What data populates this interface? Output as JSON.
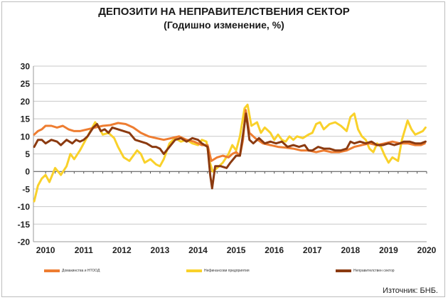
{
  "chart_data": {
    "type": "line",
    "title": "ДЕПОЗИТИ НА НЕПРАВИТЕЛСТВЕНИЯ СЕКТОР",
    "subtitle": "(Годишно изменение, %)",
    "xlabel": "",
    "ylabel": "",
    "ylim": [
      -20,
      30
    ],
    "yticks": [
      30,
      25,
      20,
      15,
      10,
      5,
      0,
      -5,
      -10,
      -15,
      -20
    ],
    "xlim": [
      2009.88,
      2020.2
    ],
    "xticks": [
      {
        "x": 2010.2,
        "label": "2010"
      },
      {
        "x": 2011.2,
        "label": "2011"
      },
      {
        "x": 2012.2,
        "label": "2012"
      },
      {
        "x": 2013.2,
        "label": "2013"
      },
      {
        "x": 2014.2,
        "label": "2014"
      },
      {
        "x": 2015.2,
        "label": "2015"
      },
      {
        "x": 2016.2,
        "label": "2016"
      },
      {
        "x": 2017.2,
        "label": "2017"
      },
      {
        "x": 2018.2,
        "label": "2018"
      },
      {
        "x": 2019.2,
        "label": "2019"
      },
      {
        "x": 2020.2,
        "label": "2020"
      }
    ],
    "grid": "horizontal",
    "legend": "bottom",
    "source": "Източник: БНБ.",
    "series": [
      {
        "name": "Домакинства и НТООД",
        "color": "#ee7d31",
        "width": 3,
        "points": [
          [
            2009.9,
            10.5
          ],
          [
            2010.0,
            11.5
          ],
          [
            2010.1,
            12.0
          ],
          [
            2010.2,
            13.0
          ],
          [
            2010.35,
            13.0
          ],
          [
            2010.5,
            12.5
          ],
          [
            2010.65,
            13.0
          ],
          [
            2010.8,
            12.0
          ],
          [
            2010.95,
            11.5
          ],
          [
            2011.1,
            11.5
          ],
          [
            2011.3,
            12.0
          ],
          [
            2011.5,
            12.5
          ],
          [
            2011.7,
            13.0
          ],
          [
            2011.9,
            13.2
          ],
          [
            2012.1,
            13.8
          ],
          [
            2012.3,
            13.5
          ],
          [
            2012.5,
            12.5
          ],
          [
            2012.7,
            11.0
          ],
          [
            2012.9,
            10.0
          ],
          [
            2013.1,
            9.5
          ],
          [
            2013.3,
            9.0
          ],
          [
            2013.5,
            9.5
          ],
          [
            2013.7,
            10.0
          ],
          [
            2013.9,
            9.0
          ],
          [
            2014.1,
            8.5
          ],
          [
            2014.3,
            7.5
          ],
          [
            2014.45,
            7.5
          ],
          [
            2014.55,
            3.0
          ],
          [
            2014.7,
            4.0
          ],
          [
            2014.85,
            4.5
          ],
          [
            2015.0,
            4.0
          ],
          [
            2015.1,
            5.0
          ],
          [
            2015.2,
            5.5
          ],
          [
            2015.3,
            4.5
          ],
          [
            2015.38,
            9.0
          ],
          [
            2015.45,
            17.5
          ],
          [
            2015.55,
            11.0
          ],
          [
            2015.7,
            9.5
          ],
          [
            2015.9,
            8.0
          ],
          [
            2016.1,
            7.5
          ],
          [
            2016.3,
            7.0
          ],
          [
            2016.5,
            6.8
          ],
          [
            2016.7,
            6.5
          ],
          [
            2016.9,
            6.0
          ],
          [
            2017.1,
            6.0
          ],
          [
            2017.3,
            5.5
          ],
          [
            2017.5,
            6.0
          ],
          [
            2017.7,
            5.5
          ],
          [
            2017.9,
            5.5
          ],
          [
            2018.1,
            6.0
          ],
          [
            2018.3,
            7.0
          ],
          [
            2018.5,
            7.5
          ],
          [
            2018.7,
            8.0
          ],
          [
            2018.9,
            7.5
          ],
          [
            2019.1,
            8.0
          ],
          [
            2019.3,
            8.5
          ],
          [
            2019.5,
            8.0
          ],
          [
            2019.7,
            8.0
          ],
          [
            2019.9,
            7.5
          ],
          [
            2020.05,
            7.5
          ],
          [
            2020.15,
            8.0
          ]
        ]
      },
      {
        "name": "Нефинансови предприятия",
        "color": "#f9d12a",
        "width": 3,
        "points": [
          [
            2009.9,
            -8.5
          ],
          [
            2010.0,
            -4.0
          ],
          [
            2010.1,
            -2.0
          ],
          [
            2010.2,
            -1.0
          ],
          [
            2010.3,
            -3.0
          ],
          [
            2010.45,
            1.0
          ],
          [
            2010.6,
            -1.0
          ],
          [
            2010.75,
            1.5
          ],
          [
            2010.85,
            5.0
          ],
          [
            2010.95,
            3.5
          ],
          [
            2011.1,
            6.0
          ],
          [
            2011.3,
            10.0
          ],
          [
            2011.4,
            12.0
          ],
          [
            2011.5,
            14.0
          ],
          [
            2011.6,
            12.5
          ],
          [
            2011.7,
            10.5
          ],
          [
            2011.85,
            11.0
          ],
          [
            2012.0,
            9.5
          ],
          [
            2012.1,
            7.0
          ],
          [
            2012.25,
            4.0
          ],
          [
            2012.4,
            3.0
          ],
          [
            2012.5,
            4.5
          ],
          [
            2012.6,
            6.0
          ],
          [
            2012.7,
            5.0
          ],
          [
            2012.8,
            2.5
          ],
          [
            2012.95,
            3.5
          ],
          [
            2013.1,
            2.0
          ],
          [
            2013.2,
            1.5
          ],
          [
            2013.3,
            3.5
          ],
          [
            2013.45,
            8.0
          ],
          [
            2013.6,
            9.5
          ],
          [
            2013.75,
            8.5
          ],
          [
            2013.9,
            9.0
          ],
          [
            2014.05,
            8.0
          ],
          [
            2014.2,
            7.5
          ],
          [
            2014.3,
            9.0
          ],
          [
            2014.42,
            8.5
          ],
          [
            2014.5,
            3.0
          ],
          [
            2014.58,
            0.0
          ],
          [
            2014.7,
            1.0
          ],
          [
            2014.85,
            2.5
          ],
          [
            2015.0,
            5.0
          ],
          [
            2015.1,
            7.5
          ],
          [
            2015.2,
            6.0
          ],
          [
            2015.3,
            10.0
          ],
          [
            2015.42,
            18.0
          ],
          [
            2015.5,
            19.0
          ],
          [
            2015.6,
            13.0
          ],
          [
            2015.75,
            14.0
          ],
          [
            2015.85,
            11.0
          ],
          [
            2015.95,
            12.5
          ],
          [
            2016.1,
            11.0
          ],
          [
            2016.2,
            9.0
          ],
          [
            2016.3,
            10.5
          ],
          [
            2016.4,
            9.0
          ],
          [
            2016.5,
            8.5
          ],
          [
            2016.6,
            10.0
          ],
          [
            2016.7,
            9.0
          ],
          [
            2016.8,
            10.0
          ],
          [
            2016.95,
            9.5
          ],
          [
            2017.1,
            10.5
          ],
          [
            2017.2,
            11.0
          ],
          [
            2017.3,
            13.5
          ],
          [
            2017.4,
            14.0
          ],
          [
            2017.5,
            12.0
          ],
          [
            2017.65,
            13.5
          ],
          [
            2017.8,
            14.0
          ],
          [
            2017.95,
            13.0
          ],
          [
            2018.1,
            11.5
          ],
          [
            2018.2,
            15.5
          ],
          [
            2018.3,
            16.5
          ],
          [
            2018.4,
            12.0
          ],
          [
            2018.5,
            10.0
          ],
          [
            2018.6,
            9.0
          ],
          [
            2018.7,
            6.5
          ],
          [
            2018.8,
            5.5
          ],
          [
            2018.9,
            8.0
          ],
          [
            2019.0,
            7.0
          ],
          [
            2019.1,
            4.5
          ],
          [
            2019.2,
            2.5
          ],
          [
            2019.3,
            4.0
          ],
          [
            2019.45,
            3.0
          ],
          [
            2019.55,
            9.0
          ],
          [
            2019.7,
            14.5
          ],
          [
            2019.8,
            12.0
          ],
          [
            2019.9,
            10.5
          ],
          [
            2020.0,
            11.0
          ],
          [
            2020.1,
            11.5
          ],
          [
            2020.17,
            12.5
          ]
        ]
      },
      {
        "name": "Неправителствен сектор",
        "color": "#8b3a10",
        "width": 3,
        "points": [
          [
            2009.9,
            7.0
          ],
          [
            2010.0,
            9.0
          ],
          [
            2010.1,
            9.0
          ],
          [
            2010.2,
            8.0
          ],
          [
            2010.35,
            9.0
          ],
          [
            2010.5,
            8.5
          ],
          [
            2010.6,
            7.5
          ],
          [
            2010.75,
            9.0
          ],
          [
            2010.9,
            8.0
          ],
          [
            2011.0,
            9.0
          ],
          [
            2011.1,
            8.5
          ],
          [
            2011.2,
            9.0
          ],
          [
            2011.3,
            10.0
          ],
          [
            2011.45,
            12.5
          ],
          [
            2011.55,
            13.5
          ],
          [
            2011.65,
            11.5
          ],
          [
            2011.75,
            12.0
          ],
          [
            2011.85,
            11.0
          ],
          [
            2011.95,
            12.5
          ],
          [
            2012.1,
            12.0
          ],
          [
            2012.25,
            11.5
          ],
          [
            2012.4,
            11.0
          ],
          [
            2012.55,
            9.0
          ],
          [
            2012.7,
            8.5
          ],
          [
            2012.85,
            8.0
          ],
          [
            2013.0,
            7.0
          ],
          [
            2013.1,
            7.0
          ],
          [
            2013.2,
            6.5
          ],
          [
            2013.3,
            5.0
          ],
          [
            2013.45,
            7.0
          ],
          [
            2013.6,
            9.0
          ],
          [
            2013.75,
            9.5
          ],
          [
            2013.9,
            8.5
          ],
          [
            2014.05,
            9.5
          ],
          [
            2014.2,
            9.0
          ],
          [
            2014.3,
            8.0
          ],
          [
            2014.45,
            7.0
          ],
          [
            2014.52,
            -1.0
          ],
          [
            2014.57,
            -4.8
          ],
          [
            2014.65,
            1.5
          ],
          [
            2014.8,
            1.5
          ],
          [
            2014.95,
            1.0
          ],
          [
            2015.05,
            2.5
          ],
          [
            2015.2,
            4.5
          ],
          [
            2015.3,
            4.5
          ],
          [
            2015.4,
            12.0
          ],
          [
            2015.46,
            16.5
          ],
          [
            2015.55,
            9.0
          ],
          [
            2015.65,
            8.0
          ],
          [
            2015.8,
            9.5
          ],
          [
            2015.95,
            8.0
          ],
          [
            2016.1,
            8.5
          ],
          [
            2016.25,
            8.0
          ],
          [
            2016.4,
            8.5
          ],
          [
            2016.55,
            7.0
          ],
          [
            2016.7,
            7.5
          ],
          [
            2016.85,
            7.0
          ],
          [
            2017.0,
            7.5
          ],
          [
            2017.1,
            6.0
          ],
          [
            2017.2,
            6.0
          ],
          [
            2017.35,
            7.0
          ],
          [
            2017.5,
            6.5
          ],
          [
            2017.65,
            6.5
          ],
          [
            2017.8,
            6.0
          ],
          [
            2017.95,
            6.0
          ],
          [
            2018.1,
            6.5
          ],
          [
            2018.2,
            8.5
          ],
          [
            2018.3,
            8.0
          ],
          [
            2018.45,
            8.5
          ],
          [
            2018.6,
            8.0
          ],
          [
            2018.75,
            8.5
          ],
          [
            2018.9,
            7.5
          ],
          [
            2019.05,
            7.5
          ],
          [
            2019.2,
            8.0
          ],
          [
            2019.35,
            7.5
          ],
          [
            2019.5,
            8.0
          ],
          [
            2019.6,
            8.5
          ],
          [
            2019.75,
            8.5
          ],
          [
            2019.9,
            8.0
          ],
          [
            2020.05,
            8.0
          ],
          [
            2020.17,
            8.5
          ]
        ]
      }
    ]
  }
}
